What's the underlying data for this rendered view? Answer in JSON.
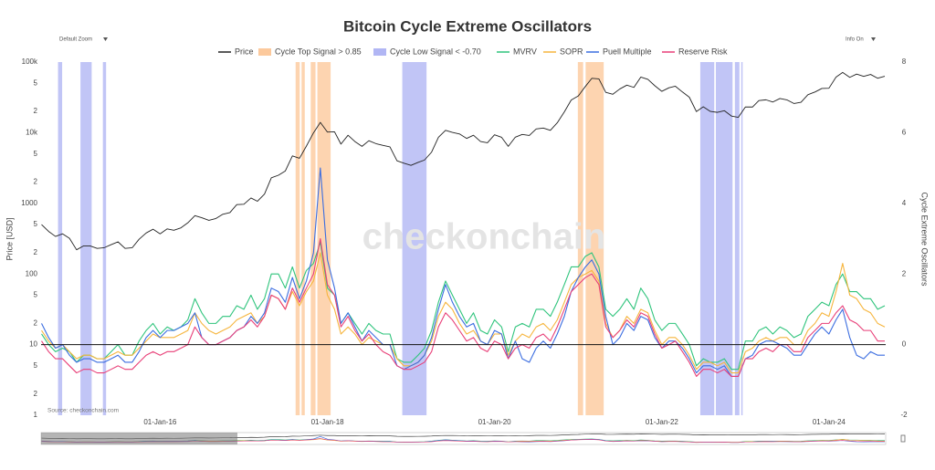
{
  "chart_data": {
    "type": "line",
    "title": "Bitcoin Cycle Extreme Oscillators",
    "ylabel": "Price [USD]",
    "y2label": "Cycle Extreme Oscillators",
    "watermark": "checkonchain",
    "source": "Source: checkonchain.com",
    "controls": {
      "zoom": "Default Zoom",
      "info": "Info On"
    },
    "log_scale": true,
    "grid": false,
    "legend": "top",
    "xlim": [
      "2014-07-30",
      "2024-09-05"
    ],
    "xticks": [
      {
        "value": "2016-01-01",
        "label": "01-Jan-16"
      },
      {
        "value": "2018-01-01",
        "label": "01-Jan-18"
      },
      {
        "value": "2020-01-01",
        "label": "01-Jan-20"
      },
      {
        "value": "2022-01-01",
        "label": "01-Jan-22"
      },
      {
        "value": "2024-01-01",
        "label": "01-Jan-24"
      }
    ],
    "ylim": [
      1,
      100000
    ],
    "yticks": [
      1,
      2,
      5,
      10,
      {
        "value": 20,
        "label": "2"
      },
      {
        "value": 50,
        "label": "5"
      },
      100,
      {
        "value": 200,
        "label": "2"
      },
      {
        "value": 500,
        "label": "5"
      },
      1000,
      {
        "value": 2000,
        "label": "2"
      },
      {
        "value": 5000,
        "label": "5"
      },
      {
        "value": 10000,
        "label": "10k"
      },
      {
        "value": 20000,
        "label": "2"
      },
      {
        "value": 50000,
        "label": "5"
      },
      {
        "value": 100000,
        "label": "100k"
      }
    ],
    "y2lim": [
      -2,
      8
    ],
    "y2ticks": [
      -2,
      0,
      2,
      4,
      6,
      8
    ],
    "x": [
      "2014-08-01",
      "2014-09-01",
      "2014-10-01",
      "2014-11-01",
      "2014-12-01",
      "2015-01-01",
      "2015-02-01",
      "2015-03-01",
      "2015-04-01",
      "2015-05-01",
      "2015-06-01",
      "2015-07-01",
      "2015-08-01",
      "2015-09-01",
      "2015-10-01",
      "2015-11-01",
      "2015-12-01",
      "2016-01-01",
      "2016-02-01",
      "2016-03-01",
      "2016-04-01",
      "2016-05-01",
      "2016-06-01",
      "2016-07-01",
      "2016-08-01",
      "2016-09-01",
      "2016-10-01",
      "2016-11-01",
      "2016-12-01",
      "2017-01-01",
      "2017-02-01",
      "2017-03-01",
      "2017-04-01",
      "2017-05-01",
      "2017-06-01",
      "2017-07-01",
      "2017-08-01",
      "2017-09-01",
      "2017-10-01",
      "2017-11-01",
      "2017-12-01",
      "2018-01-01",
      "2018-02-01",
      "2018-03-01",
      "2018-04-01",
      "2018-05-01",
      "2018-06-01",
      "2018-07-01",
      "2018-08-01",
      "2018-09-01",
      "2018-10-01",
      "2018-11-01",
      "2018-12-01",
      "2019-01-01",
      "2019-02-01",
      "2019-03-01",
      "2019-04-01",
      "2019-05-01",
      "2019-06-01",
      "2019-07-01",
      "2019-08-01",
      "2019-09-01",
      "2019-10-01",
      "2019-11-01",
      "2019-12-01",
      "2020-01-01",
      "2020-02-01",
      "2020-03-01",
      "2020-04-01",
      "2020-05-01",
      "2020-06-01",
      "2020-07-01",
      "2020-08-01",
      "2020-09-01",
      "2020-10-01",
      "2020-11-01",
      "2020-12-01",
      "2021-01-01",
      "2021-02-01",
      "2021-03-01",
      "2021-04-01",
      "2021-05-01",
      "2021-06-01",
      "2021-07-01",
      "2021-08-01",
      "2021-09-01",
      "2021-10-01",
      "2021-11-01",
      "2021-12-01",
      "2022-01-01",
      "2022-02-01",
      "2022-03-01",
      "2022-04-01",
      "2022-05-01",
      "2022-06-01",
      "2022-07-01",
      "2022-08-01",
      "2022-09-01",
      "2022-10-01",
      "2022-11-01",
      "2022-12-01",
      "2023-01-01",
      "2023-02-01",
      "2023-03-01",
      "2023-04-01",
      "2023-05-01",
      "2023-06-01",
      "2023-07-01",
      "2023-08-01",
      "2023-09-01",
      "2023-10-01",
      "2023-11-01",
      "2023-12-01",
      "2024-01-01",
      "2024-02-01",
      "2024-03-01",
      "2024-04-01",
      "2024-05-01",
      "2024-06-01",
      "2024-07-01",
      "2024-08-01",
      "2024-09-01"
    ],
    "series": [
      {
        "name": "Price",
        "color": "#222222",
        "axis": "y",
        "values": [
          500,
          400,
          340,
          370,
          320,
          220,
          250,
          250,
          230,
          235,
          260,
          285,
          230,
          235,
          310,
          380,
          430,
          370,
          435,
          415,
          450,
          530,
          670,
          625,
          575,
          610,
          700,
          740,
          960,
          970,
          1190,
          1070,
          1350,
          2300,
          2500,
          2870,
          4700,
          4340,
          6450,
          9950,
          14000,
          10200,
          10300,
          6900,
          9200,
          7500,
          6400,
          7700,
          7000,
          6600,
          6300,
          4000,
          3700,
          3450,
          3800,
          4100,
          5300,
          8600,
          10800,
          10100,
          9600,
          8300,
          9200,
          7500,
          7200,
          9350,
          8600,
          6400,
          8650,
          9450,
          9150,
          11300,
          11650,
          10800,
          13800,
          19700,
          29000,
          33100,
          45200,
          58800,
          57700,
          37300,
          35000,
          41500,
          47100,
          43800,
          61300,
          57000,
          46300,
          38500,
          43200,
          45500,
          37700,
          31800,
          19900,
          23300,
          20000,
          19400,
          20500,
          17200,
          16500,
          23100,
          23100,
          28500,
          29200,
          27200,
          30500,
          29200,
          25900,
          27000,
          34500,
          37700,
          42300,
          42600,
          61200,
          71300,
          60700,
          67500,
          62700,
          66800,
          59000,
          63000
        ]
      },
      {
        "name": "MVRV",
        "color": "#2fc47c",
        "axis": "y2",
        "values": [
          0.3,
          0.0,
          -0.2,
          -0.1,
          -0.2,
          -0.5,
          -0.3,
          -0.3,
          -0.4,
          -0.4,
          -0.2,
          0.0,
          -0.3,
          -0.3,
          0.1,
          0.4,
          0.6,
          0.3,
          0.5,
          0.4,
          0.5,
          0.7,
          1.3,
          0.9,
          0.6,
          0.6,
          0.8,
          0.8,
          1.1,
          1.0,
          1.4,
          1.0,
          1.3,
          2.0,
          2.0,
          1.6,
          2.2,
          1.6,
          2.1,
          2.3,
          2.9,
          1.6,
          1.4,
          0.6,
          0.9,
          0.6,
          0.3,
          0.6,
          0.4,
          0.3,
          0.3,
          -0.4,
          -0.5,
          -0.5,
          -0.3,
          -0.1,
          0.4,
          1.2,
          1.8,
          1.4,
          1.0,
          0.6,
          0.9,
          0.4,
          0.3,
          0.7,
          0.5,
          -0.2,
          0.5,
          0.6,
          0.5,
          1.0,
          1.0,
          0.8,
          1.2,
          1.7,
          2.2,
          2.2,
          2.5,
          2.6,
          2.2,
          1.0,
          0.8,
          1.0,
          1.3,
          1.0,
          1.6,
          1.3,
          0.7,
          0.4,
          0.6,
          0.6,
          0.3,
          0.0,
          -0.6,
          -0.4,
          -0.5,
          -0.5,
          -0.4,
          -0.7,
          -0.7,
          0.1,
          0.1,
          0.4,
          0.5,
          0.3,
          0.5,
          0.4,
          0.2,
          0.3,
          0.8,
          1.0,
          1.2,
          1.1,
          1.7,
          2.0,
          1.5,
          1.5,
          1.3,
          1.3,
          1.0,
          1.1
        ]
      },
      {
        "name": "SOPR",
        "color": "#f6b53d",
        "axis": "y2",
        "values": [
          0.4,
          0.1,
          -0.1,
          0.0,
          -0.2,
          -0.4,
          -0.3,
          -0.3,
          -0.4,
          -0.4,
          -0.3,
          -0.2,
          -0.3,
          -0.3,
          -0.1,
          0.1,
          0.3,
          0.2,
          0.2,
          0.2,
          0.3,
          0.4,
          0.9,
          0.6,
          0.4,
          0.3,
          0.4,
          0.5,
          0.7,
          0.8,
          0.9,
          0.6,
          0.8,
          1.4,
          1.3,
          1.0,
          1.5,
          1.1,
          1.5,
          1.8,
          2.6,
          1.4,
          1.0,
          0.3,
          0.5,
          0.3,
          0.0,
          0.2,
          0.1,
          0.0,
          0.0,
          -0.4,
          -0.6,
          -0.6,
          -0.5,
          -0.3,
          0.1,
          0.8,
          1.2,
          1.0,
          0.6,
          0.3,
          0.4,
          0.1,
          0.0,
          0.3,
          0.3,
          -0.3,
          0.1,
          0.3,
          0.2,
          0.5,
          0.6,
          0.4,
          0.7,
          1.2,
          1.7,
          1.9,
          2.0,
          2.1,
          1.8,
          0.6,
          0.2,
          0.4,
          0.8,
          0.6,
          1.0,
          0.9,
          0.4,
          0.0,
          0.2,
          0.2,
          0.0,
          -0.3,
          -0.7,
          -0.5,
          -0.5,
          -0.6,
          -0.5,
          -0.8,
          -0.8,
          -0.2,
          -0.1,
          0.1,
          0.2,
          0.1,
          0.2,
          0.2,
          0.0,
          0.0,
          0.4,
          0.6,
          0.9,
          0.8,
          1.5,
          2.3,
          1.4,
          1.3,
          1.0,
          0.9,
          0.6,
          0.5
        ]
      },
      {
        "name": "Puell Multiple",
        "color": "#3b6de0",
        "axis": "y2",
        "values": [
          0.6,
          0.2,
          -0.1,
          0.0,
          -0.3,
          -0.5,
          -0.4,
          -0.4,
          -0.5,
          -0.5,
          -0.4,
          -0.3,
          -0.5,
          -0.5,
          -0.2,
          0.2,
          0.4,
          0.2,
          0.4,
          0.4,
          0.5,
          0.6,
          0.9,
          0.2,
          0.0,
          0.0,
          0.1,
          0.2,
          0.4,
          0.5,
          0.8,
          0.6,
          0.9,
          1.6,
          1.5,
          1.2,
          1.9,
          1.3,
          1.8,
          2.6,
          5.0,
          2.4,
          1.6,
          0.6,
          0.9,
          0.5,
          0.1,
          0.4,
          0.2,
          0.0,
          0.0,
          -0.6,
          -0.7,
          -0.6,
          -0.5,
          -0.3,
          0.2,
          1.0,
          1.7,
          1.2,
          0.8,
          0.5,
          0.6,
          0.1,
          0.0,
          0.4,
          0.3,
          -0.4,
          0.1,
          -0.4,
          -0.5,
          -0.1,
          0.1,
          -0.1,
          0.3,
          0.8,
          1.5,
          1.9,
          2.2,
          2.4,
          2.0,
          0.8,
          0.0,
          0.2,
          0.6,
          0.4,
          0.8,
          0.7,
          0.2,
          -0.1,
          0.1,
          0.1,
          -0.1,
          -0.4,
          -0.8,
          -0.6,
          -0.6,
          -0.7,
          -0.6,
          -0.9,
          -0.9,
          -0.4,
          -0.3,
          0.0,
          0.1,
          0.1,
          0.0,
          -0.1,
          -0.3,
          -0.3,
          0.0,
          0.3,
          0.5,
          0.3,
          0.7,
          1.0,
          0.2,
          -0.3,
          -0.4,
          -0.2,
          -0.3,
          -0.3
        ]
      },
      {
        "name": "Reserve Risk",
        "color": "#e83f78",
        "axis": "y2",
        "values": [
          0.1,
          -0.2,
          -0.4,
          -0.4,
          -0.6,
          -0.8,
          -0.7,
          -0.7,
          -0.8,
          -0.8,
          -0.7,
          -0.6,
          -0.7,
          -0.7,
          -0.5,
          -0.3,
          -0.2,
          -0.3,
          -0.2,
          -0.2,
          -0.1,
          0.0,
          0.5,
          0.2,
          0.0,
          0.0,
          0.1,
          0.2,
          0.4,
          0.5,
          0.7,
          0.5,
          0.8,
          1.4,
          1.3,
          1.0,
          1.6,
          1.2,
          1.6,
          2.0,
          3.0,
          1.7,
          1.4,
          0.5,
          0.8,
          0.4,
          0.1,
          0.3,
          0.0,
          -0.2,
          -0.3,
          -0.6,
          -0.7,
          -0.7,
          -0.6,
          -0.5,
          -0.2,
          0.5,
          0.9,
          0.7,
          0.4,
          0.1,
          0.2,
          -0.1,
          -0.2,
          0.1,
          0.0,
          -0.4,
          -0.1,
          0.0,
          -0.1,
          0.2,
          0.3,
          0.1,
          0.5,
          1.0,
          1.5,
          1.7,
          1.9,
          2.0,
          1.7,
          0.5,
          0.2,
          0.4,
          0.7,
          0.5,
          0.9,
          0.8,
          0.3,
          -0.1,
          0.0,
          0.1,
          -0.2,
          -0.5,
          -0.9,
          -0.7,
          -0.7,
          -0.8,
          -0.7,
          -0.9,
          -0.9,
          -0.4,
          -0.4,
          -0.2,
          -0.1,
          -0.2,
          0.0,
          0.0,
          -0.2,
          -0.2,
          0.2,
          0.4,
          0.6,
          0.6,
          0.9,
          1.1,
          0.7,
          0.6,
          0.4,
          0.4,
          0.1,
          0.1
        ]
      }
    ],
    "bands": [
      {
        "name": "Cycle Top Signal > 0.85",
        "color": "#fcc99c",
        "ranges": [
          [
            "2017-08-15",
            "2017-09-02"
          ],
          [
            "2017-09-10",
            "2017-09-24"
          ],
          [
            "2017-10-20",
            "2017-11-10"
          ],
          [
            "2017-11-18",
            "2018-01-15"
          ],
          [
            "2020-12-30",
            "2021-01-22"
          ],
          [
            "2021-02-02",
            "2021-04-22"
          ]
        ]
      },
      {
        "name": "Cycle Low Signal < -0.70",
        "color": "#b1b6f4",
        "ranges": [
          [
            "2014-10-12",
            "2014-10-30"
          ],
          [
            "2015-01-18",
            "2015-03-08"
          ],
          [
            "2015-04-26",
            "2015-05-10"
          ],
          [
            "2018-11-24",
            "2019-03-10"
          ],
          [
            "2022-06-18",
            "2022-08-18"
          ],
          [
            "2022-08-25",
            "2022-11-06"
          ],
          [
            "2022-11-16",
            "2022-12-06"
          ],
          [
            "2022-12-14",
            "2022-12-20"
          ]
        ]
      }
    ]
  }
}
